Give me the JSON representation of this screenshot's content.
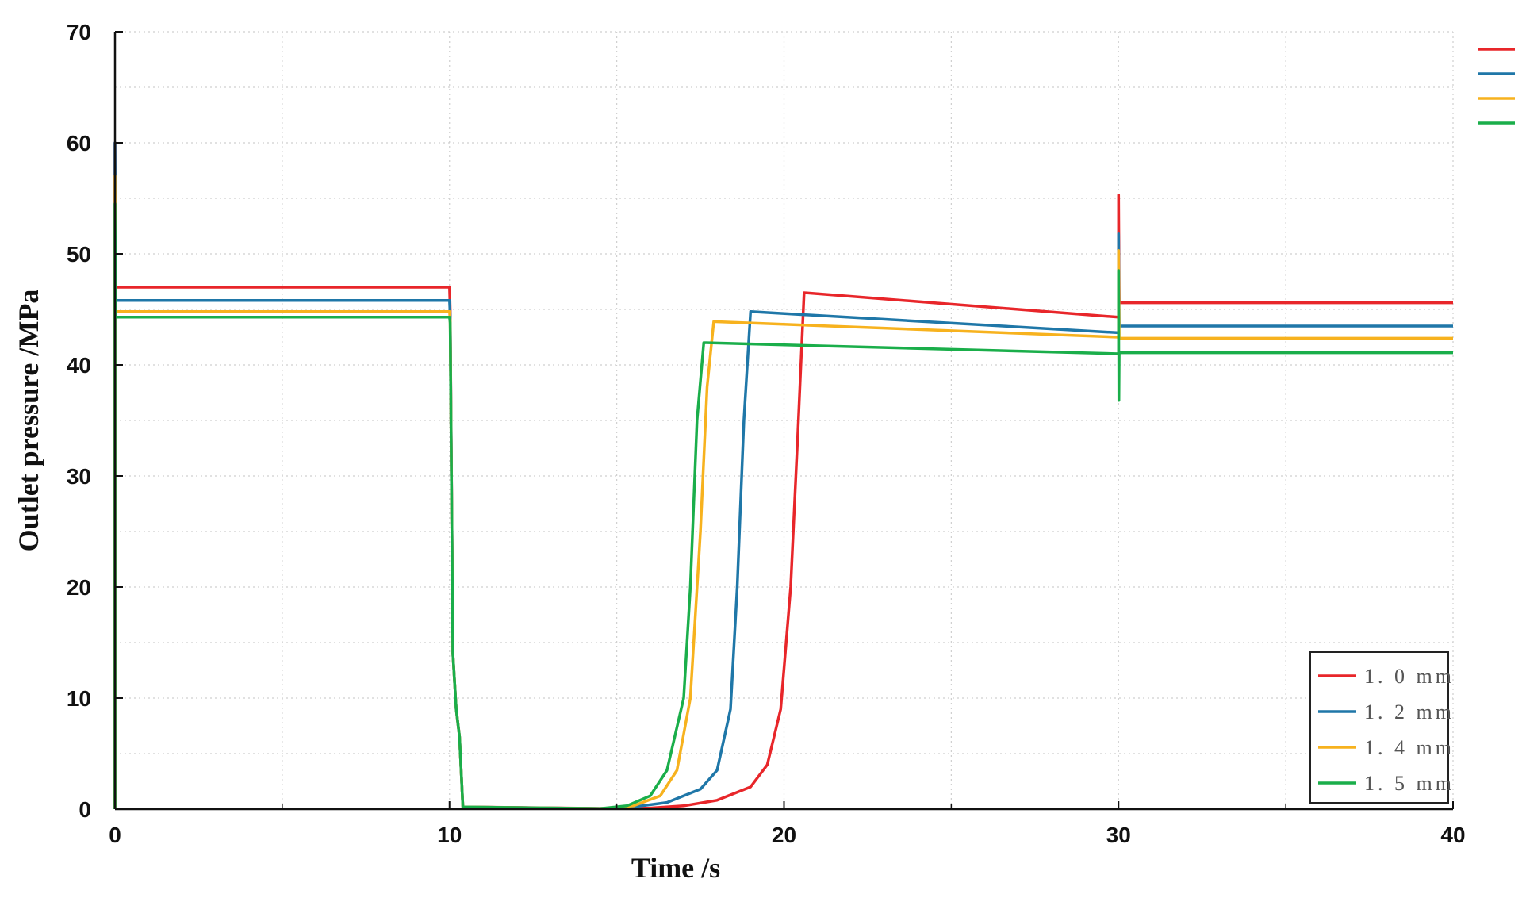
{
  "chart_data": {
    "type": "line",
    "xlabel": "Time /s",
    "ylabel": "Outlet pressure /MPa",
    "xlim": [
      0,
      40
    ],
    "ylim": [
      0,
      70
    ],
    "xticks": [
      0,
      10,
      20,
      30,
      40
    ],
    "yticks": [
      0,
      10,
      20,
      30,
      40,
      50,
      60,
      70
    ],
    "grid": true,
    "legend_position": "bottom-right",
    "series": [
      {
        "name": "1. 0 mm",
        "color": "#e8262a",
        "points": [
          [
            0,
            0
          ],
          [
            0,
            60
          ],
          [
            0.02,
            47
          ],
          [
            10,
            47
          ],
          [
            10.02,
            45
          ],
          [
            10.1,
            14
          ],
          [
            10.2,
            9
          ],
          [
            10.3,
            6.5
          ],
          [
            10.4,
            0.2
          ],
          [
            15,
            0.05
          ],
          [
            16,
            0.1
          ],
          [
            17,
            0.3
          ],
          [
            18,
            0.8
          ],
          [
            19,
            2
          ],
          [
            19.5,
            4
          ],
          [
            19.9,
            9
          ],
          [
            20.2,
            20
          ],
          [
            20.4,
            33
          ],
          [
            20.6,
            46.5
          ],
          [
            30,
            44.3
          ],
          [
            30,
            55.3
          ],
          [
            30.02,
            45.6
          ],
          [
            40,
            45.6
          ]
        ]
      },
      {
        "name": "1. 2 mm",
        "color": "#1f77a8",
        "points": [
          [
            0,
            0
          ],
          [
            0,
            60
          ],
          [
            0.02,
            45.8
          ],
          [
            10,
            45.8
          ],
          [
            10.02,
            44.5
          ],
          [
            10.1,
            14
          ],
          [
            10.2,
            9
          ],
          [
            10.3,
            6.5
          ],
          [
            10.4,
            0.2
          ],
          [
            14.5,
            0.05
          ],
          [
            15.5,
            0.2
          ],
          [
            16.5,
            0.6
          ],
          [
            17.5,
            1.8
          ],
          [
            18,
            3.5
          ],
          [
            18.4,
            9
          ],
          [
            18.6,
            20
          ],
          [
            18.8,
            35
          ],
          [
            19,
            44.8
          ],
          [
            30,
            42.9
          ],
          [
            30,
            51.8
          ],
          [
            30.02,
            43.5
          ],
          [
            40,
            43.5
          ]
        ]
      },
      {
        "name": "1. 4 mm",
        "color": "#f7b21e",
        "points": [
          [
            0,
            0
          ],
          [
            0,
            57
          ],
          [
            0.02,
            44.8
          ],
          [
            10,
            44.8
          ],
          [
            10.02,
            44
          ],
          [
            10.1,
            14
          ],
          [
            10.2,
            9
          ],
          [
            10.3,
            6.5
          ],
          [
            10.4,
            0.2
          ],
          [
            14.5,
            0.05
          ],
          [
            15.5,
            0.3
          ],
          [
            16.3,
            1.2
          ],
          [
            16.8,
            3.5
          ],
          [
            17.2,
            10
          ],
          [
            17.5,
            25
          ],
          [
            17.7,
            38
          ],
          [
            17.9,
            43.9
          ],
          [
            30,
            42.5
          ],
          [
            30,
            50.3
          ],
          [
            30.02,
            42.4
          ],
          [
            40,
            42.4
          ]
        ]
      },
      {
        "name": "1. 5 mm",
        "color": "#1aae4a",
        "points": [
          [
            0,
            0
          ],
          [
            0,
            54.5
          ],
          [
            0.02,
            44.3
          ],
          [
            10,
            44.3
          ],
          [
            10.02,
            43.8
          ],
          [
            10.1,
            14
          ],
          [
            10.2,
            9
          ],
          [
            10.3,
            6.5
          ],
          [
            10.4,
            0.2
          ],
          [
            14.5,
            0.05
          ],
          [
            15.3,
            0.3
          ],
          [
            16,
            1.2
          ],
          [
            16.5,
            3.5
          ],
          [
            17,
            10
          ],
          [
            17.2,
            20
          ],
          [
            17.4,
            35
          ],
          [
            17.6,
            42
          ],
          [
            30,
            41
          ],
          [
            30,
            48.5
          ],
          [
            30.01,
            36.8
          ],
          [
            30.02,
            41.1
          ],
          [
            40,
            41.1
          ]
        ]
      }
    ]
  }
}
